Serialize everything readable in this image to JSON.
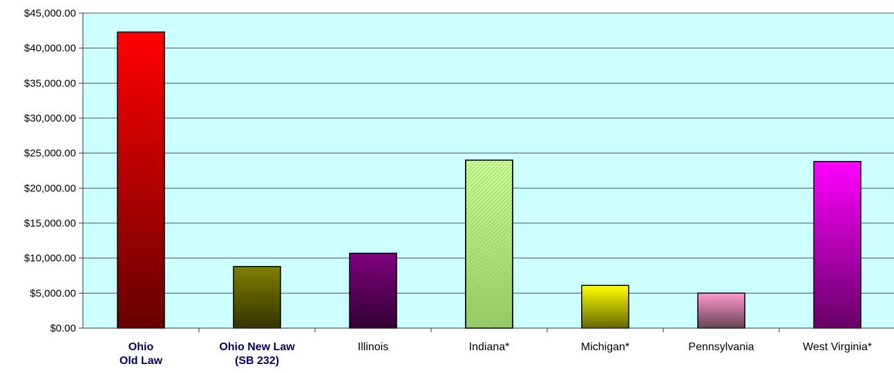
{
  "chart_data": {
    "type": "bar",
    "categories": [
      {
        "lines": [
          "Ohio",
          "Old Law"
        ],
        "bold": true
      },
      {
        "lines": [
          "Ohio New Law",
          "(SB 232)"
        ],
        "bold": true
      },
      {
        "lines": [
          "Illinois"
        ],
        "bold": false
      },
      {
        "lines": [
          "Indiana*"
        ],
        "bold": false
      },
      {
        "lines": [
          "Michigan*"
        ],
        "bold": false
      },
      {
        "lines": [
          "Pennsylvania"
        ],
        "bold": false
      },
      {
        "lines": [
          "West Virginia*"
        ],
        "bold": false
      }
    ],
    "values": [
      42300,
      8800,
      10700,
      24000,
      6100,
      5000,
      23800
    ],
    "y_ticks": [
      "$0.00",
      "$5,000.00",
      "$10,000.00",
      "$15,000.00",
      "$20,000.00",
      "$25,000.00",
      "$30,000.00",
      "$35,000.00",
      "$40,000.00",
      "$45,000.00"
    ],
    "ylim": [
      0,
      45000
    ],
    "grid": true,
    "colors": {
      "plot_background": "#ccffff",
      "gridline": "#555555",
      "bold_label": "#000066",
      "bars": [
        {
          "top": "#ff0000",
          "bottom": "#660000"
        },
        {
          "top": "#808000",
          "bottom": "#333300"
        },
        {
          "top": "#800080",
          "bottom": "#330033"
        },
        {
          "top": "#ccff99",
          "bottom": "#99cc66",
          "pattern": "diagonal"
        },
        {
          "top": "#ffff00",
          "bottom": "#666600"
        },
        {
          "top": "#ff99cc",
          "bottom": "#664455"
        },
        {
          "top": "#ff00ff",
          "bottom": "#660066"
        }
      ]
    }
  }
}
